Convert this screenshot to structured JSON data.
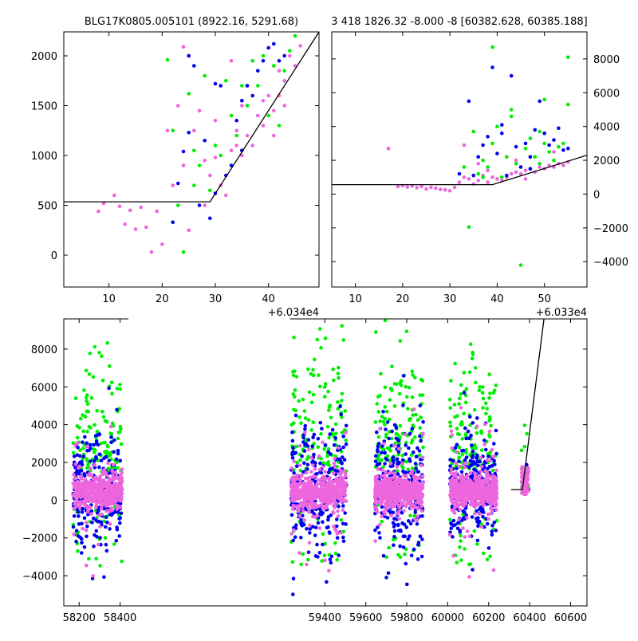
{
  "chart_data": [
    {
      "type": "scatter",
      "panel": "top-left",
      "title": "BLG17K0805.005101 (8922.16, 5291.68)",
      "xlabel": "",
      "ylabel": "",
      "x_offset_label": "+6.034e4",
      "xlim": [
        1.5,
        49.5
      ],
      "ylim": [
        -320,
        2240
      ],
      "xticks": [
        10,
        20,
        30,
        40
      ],
      "yticks": [
        0,
        500,
        1000,
        1500,
        2000
      ],
      "y_axis_side": "left",
      "grid": false,
      "series": [
        {
          "color": "#ee66dd",
          "points": [
            [
              8,
              440
            ],
            [
              9,
              520
            ],
            [
              11,
              600
            ],
            [
              12,
              490
            ],
            [
              13,
              310
            ],
            [
              14,
              450
            ],
            [
              15,
              260
            ],
            [
              16,
              480
            ],
            [
              17,
              280
            ],
            [
              18,
              30
            ],
            [
              19,
              440
            ],
            [
              20,
              110
            ],
            [
              21,
              1250
            ],
            [
              22,
              700
            ],
            [
              23,
              1500
            ],
            [
              24,
              900
            ],
            [
              25,
              250
            ],
            [
              26,
              1250
            ],
            [
              27,
              1450
            ],
            [
              28,
              500
            ],
            [
              29,
              800
            ],
            [
              30,
              980
            ],
            [
              31,
              700
            ],
            [
              32,
              600
            ],
            [
              33,
              1050
            ],
            [
              34,
              1100
            ],
            [
              35,
              1000
            ],
            [
              36,
              1200
            ],
            [
              37,
              1100
            ],
            [
              38,
              1400
            ],
            [
              39,
              1300
            ],
            [
              40,
              1600
            ],
            [
              41,
              1450
            ],
            [
              42,
              1600
            ],
            [
              43,
              1750
            ],
            [
              44,
              2000
            ],
            [
              45,
              1900
            ],
            [
              46,
              2100
            ],
            [
              25,
              2000
            ],
            [
              33,
              1950
            ],
            [
              36,
              1700
            ],
            [
              41,
              1200
            ],
            [
              43,
              1500
            ],
            [
              30,
              1350
            ],
            [
              28,
              950
            ],
            [
              34,
              1250
            ],
            [
              39,
              1550
            ],
            [
              42,
              1850
            ],
            [
              24,
              2090
            ],
            [
              35,
              1500
            ]
          ]
        },
        {
          "color": "#00ee00",
          "points": [
            [
              21,
              1960
            ],
            [
              22,
              1250
            ],
            [
              23,
              500
            ],
            [
              24,
              30
            ],
            [
              25,
              1620
            ],
            [
              26,
              1050
            ],
            [
              27,
              900
            ],
            [
              28,
              1800
            ],
            [
              29,
              650
            ],
            [
              31,
              1000
            ],
            [
              32,
              1750
            ],
            [
              33,
              1400
            ],
            [
              34,
              1200
            ],
            [
              36,
              1500
            ],
            [
              37,
              1950
            ],
            [
              38,
              1700
            ],
            [
              39,
              2000
            ],
            [
              40,
              1400
            ],
            [
              41,
              1900
            ],
            [
              42,
              1300
            ],
            [
              43,
              1850
            ],
            [
              22,
              330
            ],
            [
              26,
              700
            ],
            [
              30,
              1100
            ],
            [
              35,
              1700
            ],
            [
              44,
              2050
            ],
            [
              45,
              2200
            ]
          ]
        },
        {
          "color": "#0000ee",
          "points": [
            [
              22,
              330
            ],
            [
              23,
              720
            ],
            [
              24,
              1040
            ],
            [
              25,
              1230
            ],
            [
              26,
              1900
            ],
            [
              27,
              500
            ],
            [
              28,
              1150
            ],
            [
              29,
              370
            ],
            [
              30,
              620
            ],
            [
              31,
              1700
            ],
            [
              32,
              800
            ],
            [
              33,
              900
            ],
            [
              34,
              1350
            ],
            [
              35,
              1550
            ],
            [
              36,
              1700
            ],
            [
              37,
              1600
            ],
            [
              38,
              1850
            ],
            [
              39,
              1950
            ],
            [
              40,
              2080
            ],
            [
              41,
              2120
            ],
            [
              42,
              1950
            ],
            [
              43,
              2000
            ],
            [
              25,
              2000
            ],
            [
              30,
              1720
            ],
            [
              35,
              1050
            ]
          ]
        }
      ],
      "fit_line": [
        [
          1.5,
          535
        ],
        [
          29,
          535
        ],
        [
          49.5,
          2240
        ]
      ]
    },
    {
      "type": "scatter",
      "panel": "top-right",
      "title": "3 418 1826.32 -8.000 -8 [60382.628, 60385.188]",
      "xlabel": "",
      "ylabel": "",
      "x_offset_label": "+6.033e4",
      "xlim": [
        5,
        59
      ],
      "ylim": [
        -5500,
        9600
      ],
      "xticks": [
        10,
        20,
        30,
        40,
        50
      ],
      "yticks": [
        -4000,
        -2000,
        0,
        2000,
        4000,
        6000,
        8000
      ],
      "y_axis_side": "right",
      "grid": false,
      "series": [
        {
          "color": "#ee66dd",
          "points": [
            [
              17,
              2700
            ],
            [
              19,
              450
            ],
            [
              20,
              500
            ],
            [
              21,
              420
            ],
            [
              22,
              480
            ],
            [
              23,
              380
            ],
            [
              24,
              450
            ],
            [
              25,
              300
            ],
            [
              26,
              400
            ],
            [
              27,
              350
            ],
            [
              28,
              280
            ],
            [
              29,
              250
            ],
            [
              30,
              200
            ],
            [
              31,
              400
            ],
            [
              32,
              700
            ],
            [
              33,
              1000
            ],
            [
              34,
              900
            ],
            [
              35,
              600
            ],
            [
              36,
              800
            ],
            [
              37,
              1100
            ],
            [
              38,
              700
            ],
            [
              39,
              1000
            ],
            [
              40,
              900
            ],
            [
              41,
              800
            ],
            [
              42,
              1000
            ],
            [
              43,
              1200
            ],
            [
              44,
              1300
            ],
            [
              45,
              1200
            ],
            [
              46,
              1400
            ],
            [
              47,
              1500
            ],
            [
              48,
              1300
            ],
            [
              49,
              1600
            ],
            [
              50,
              1500
            ],
            [
              51,
              1700
            ],
            [
              52,
              1600
            ],
            [
              53,
              1800
            ],
            [
              54,
              1700
            ],
            [
              55,
              1900
            ],
            [
              33,
              2900
            ],
            [
              36,
              1800
            ],
            [
              44,
              2000
            ],
            [
              48,
              2200
            ],
            [
              52,
              2500
            ],
            [
              38,
              1400
            ],
            [
              46,
              900
            ]
          ]
        },
        {
          "color": "#00ee00",
          "points": [
            [
              33,
              1600
            ],
            [
              34,
              -1950
            ],
            [
              35,
              3700
            ],
            [
              36,
              1200
            ],
            [
              37,
              2000
            ],
            [
              38,
              1600
            ],
            [
              39,
              3000
            ],
            [
              40,
              4000
            ],
            [
              41,
              1000
            ],
            [
              42,
              2200
            ],
            [
              43,
              4600
            ],
            [
              44,
              1800
            ],
            [
              45,
              -4200
            ],
            [
              46,
              2700
            ],
            [
              47,
              3300
            ],
            [
              48,
              2200
            ],
            [
              49,
              1800
            ],
            [
              50,
              3000
            ],
            [
              51,
              2500
            ],
            [
              52,
              2000
            ],
            [
              53,
              2800
            ],
            [
              54,
              3000
            ],
            [
              55,
              5300
            ],
            [
              55,
              8100
            ],
            [
              39,
              8700
            ],
            [
              43,
              5000
            ],
            [
              49,
              3700
            ],
            [
              37,
              1000
            ],
            [
              50,
              5600
            ]
          ]
        },
        {
          "color": "#0000ee",
          "points": [
            [
              32,
              1200
            ],
            [
              34,
              5500
            ],
            [
              35,
              1100
            ],
            [
              36,
              2200
            ],
            [
              38,
              3400
            ],
            [
              39,
              7500
            ],
            [
              40,
              2400
            ],
            [
              41,
              4100
            ],
            [
              42,
              1100
            ],
            [
              43,
              7000
            ],
            [
              44,
              2800
            ],
            [
              45,
              1600
            ],
            [
              46,
              3000
            ],
            [
              47,
              2200
            ],
            [
              48,
              3800
            ],
            [
              49,
              5500
            ],
            [
              50,
              3600
            ],
            [
              51,
              2900
            ],
            [
              52,
              3200
            ],
            [
              53,
              3900
            ],
            [
              54,
              2600
            ],
            [
              55,
              2700
            ],
            [
              37,
              2900
            ],
            [
              41,
              3600
            ],
            [
              47,
              1500
            ]
          ]
        }
      ],
      "fit_line": [
        [
          5,
          560
        ],
        [
          39,
          560
        ],
        [
          59,
          2300
        ]
      ]
    },
    {
      "type": "scatter",
      "panel": "bottom",
      "title": "",
      "xlabel": "",
      "ylabel": "",
      "xlim": [
        58125,
        60680
      ],
      "ylim": [
        -5600,
        9600
      ],
      "xticks": [
        58200,
        58400,
        59400,
        59600,
        59800,
        60000,
        60200,
        60400,
        60600
      ],
      "yticks": [
        -4000,
        -2000,
        0,
        2000,
        4000,
        6000,
        8000
      ],
      "y_axis_side": "left",
      "grid": false,
      "segments": [
        {
          "x_range": [
            58170,
            58410
          ],
          "spread": 1.0
        },
        {
          "x_range": [
            59235,
            59505
          ],
          "spread": 1.2
        },
        {
          "x_range": [
            59645,
            59880
          ],
          "spread": 1.2
        },
        {
          "x_range": [
            60010,
            60240
          ],
          "spread": 1.1
        },
        {
          "x_range": [
            60360,
            60395
          ],
          "spread": 0.6
        }
      ],
      "series": [
        {
          "name": "",
          "color": "#00ee00"
        },
        {
          "name": "",
          "color": "#0000ee"
        },
        {
          "name": "",
          "color": "#ee66dd"
        }
      ],
      "fit_line": [
        [
          60310,
          560
        ],
        [
          60365,
          560
        ],
        [
          60470,
          9600
        ]
      ]
    }
  ]
}
